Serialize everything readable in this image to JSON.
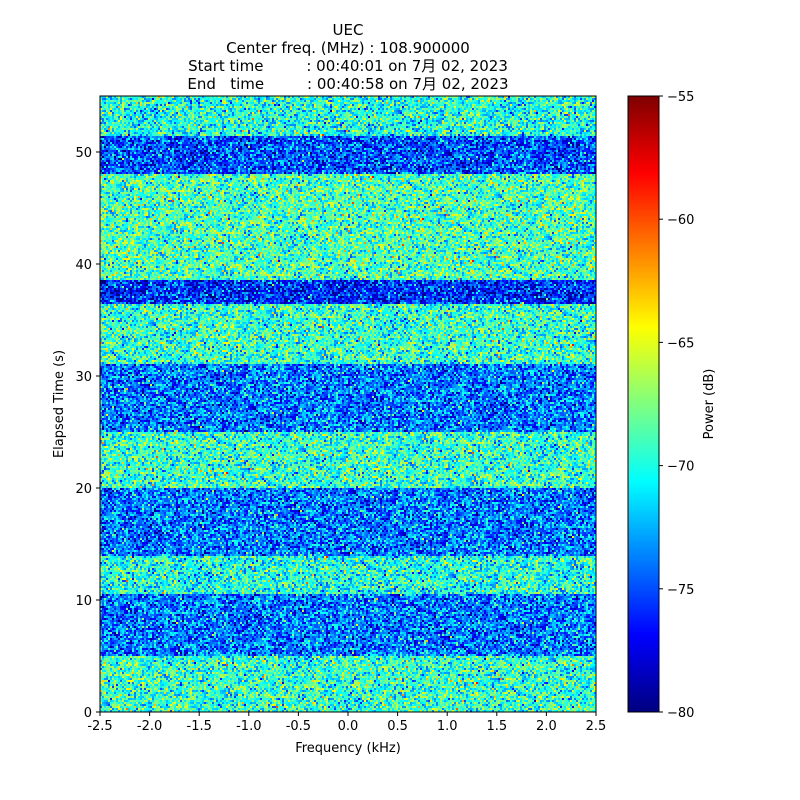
{
  "chart_data": {
    "type": "heatmap",
    "title_lines": [
      "UEC",
      "Center freq. (MHz) : 108.900000",
      "Start time         : 00:40:01 on 7月 02, 2023",
      "End   time         : 00:40:58 on 7月 02, 2023"
    ],
    "xlabel": "Frequency (kHz)",
    "ylabel": "Elapsed Time (s)",
    "xlim": [
      -2.5,
      2.5
    ],
    "ylim": [
      0,
      55
    ],
    "xticks": [
      -2.5,
      -2.0,
      -1.5,
      -1.0,
      -0.5,
      0.0,
      0.5,
      1.0,
      1.5,
      2.0,
      2.5
    ],
    "xtick_labels": [
      "-2.5",
      "-2.0",
      "-1.5",
      "-1.0",
      "-0.5",
      "0.0",
      "0.5",
      "1.0",
      "1.5",
      "2.0",
      "2.5"
    ],
    "yticks": [
      0,
      10,
      20,
      30,
      40,
      50
    ],
    "ytick_labels": [
      "0",
      "10",
      "20",
      "30",
      "40",
      "50"
    ],
    "colormap": "jet",
    "colorbar": {
      "label": "Power (dB)",
      "range": [
        -80,
        -55
      ],
      "ticks": [
        -80,
        -75,
        -70,
        -65,
        -60,
        -55
      ],
      "tick_labels": [
        "−80",
        "−75",
        "−70",
        "−65",
        "−60",
        "−55"
      ]
    },
    "time_bands": [
      {
        "t_start": 0,
        "t_end": 5,
        "mean_power_db": -69.5
      },
      {
        "t_start": 5,
        "t_end": 10.5,
        "mean_power_db": -74
      },
      {
        "t_start": 10.5,
        "t_end": 14,
        "mean_power_db": -70
      },
      {
        "t_start": 14,
        "t_end": 20,
        "mean_power_db": -74
      },
      {
        "t_start": 20,
        "t_end": 25,
        "mean_power_db": -69.5
      },
      {
        "t_start": 25,
        "t_end": 31,
        "mean_power_db": -74
      },
      {
        "t_start": 31,
        "t_end": 36.5,
        "mean_power_db": -69.5
      },
      {
        "t_start": 36.5,
        "t_end": 38.5,
        "mean_power_db": -76
      },
      {
        "t_start": 38.5,
        "t_end": 48,
        "mean_power_db": -69
      },
      {
        "t_start": 48,
        "t_end": 51.5,
        "mean_power_db": -75
      },
      {
        "t_start": 51.5,
        "t_end": 55,
        "mean_power_db": -70
      }
    ],
    "noise_std_db": 2.6
  }
}
